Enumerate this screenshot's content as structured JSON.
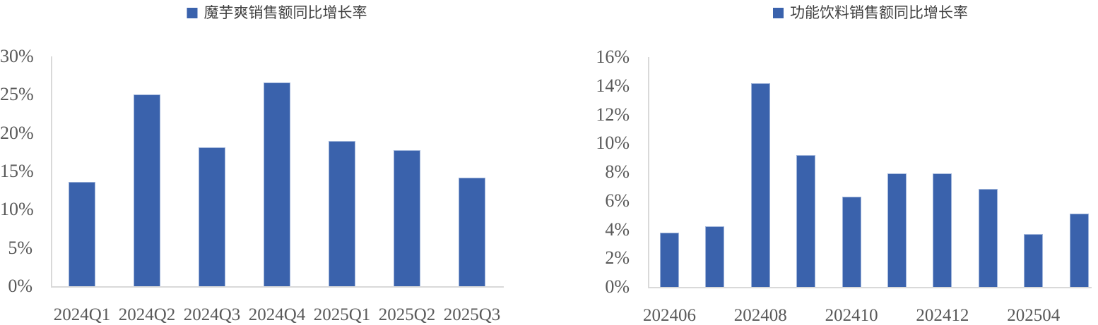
{
  "colors": {
    "bar_fill": "#3A62AC",
    "bar_border": "#9FB4DA",
    "axis_line": "#D9D9D9",
    "tick_text": "#595959",
    "legend_text": "#3F3F3F"
  },
  "chart_data": [
    {
      "type": "bar",
      "legend": "魔芋爽销售额同比增长率",
      "categories": [
        "2024Q1",
        "2024Q2",
        "2024Q3",
        "2024Q4",
        "2025Q1",
        "2025Q2",
        "2025Q3"
      ],
      "values": [
        13.6,
        25.0,
        18.1,
        26.6,
        19.0,
        17.8,
        14.2
      ],
      "ylim": [
        0,
        30
      ],
      "ytick_step": 5,
      "ytick_labels": [
        "0%",
        "5%",
        "10%",
        "15%",
        "20%",
        "25%",
        "30%"
      ],
      "x_tick_labels": [
        "2024Q1",
        "2024Q2",
        "2024Q3",
        "2024Q4",
        "2025Q1",
        "2025Q2",
        "2025Q3"
      ],
      "x_tick_positions": [
        0,
        1,
        2,
        3,
        4,
        5,
        6
      ],
      "grid": "off",
      "legend_position": "top-center",
      "unit": "percent"
    },
    {
      "type": "bar",
      "legend": "功能饮料销售额同比增长率",
      "values": [
        3.8,
        4.2,
        14.2,
        9.2,
        6.3,
        7.9,
        7.9,
        6.8,
        3.7,
        5.1
      ],
      "ylim": [
        0,
        16
      ],
      "ytick_step": 2,
      "ytick_labels": [
        "0%",
        "2%",
        "4%",
        "6%",
        "8%",
        "10%",
        "12%",
        "14%",
        "16%"
      ],
      "x_tick_labels": [
        "202406",
        "202408",
        "202410",
        "202412",
        "202504"
      ],
      "x_tick_positions": [
        0,
        2,
        4,
        6,
        8
      ],
      "grid": "off",
      "legend_position": "top-center",
      "unit": "percent"
    }
  ]
}
